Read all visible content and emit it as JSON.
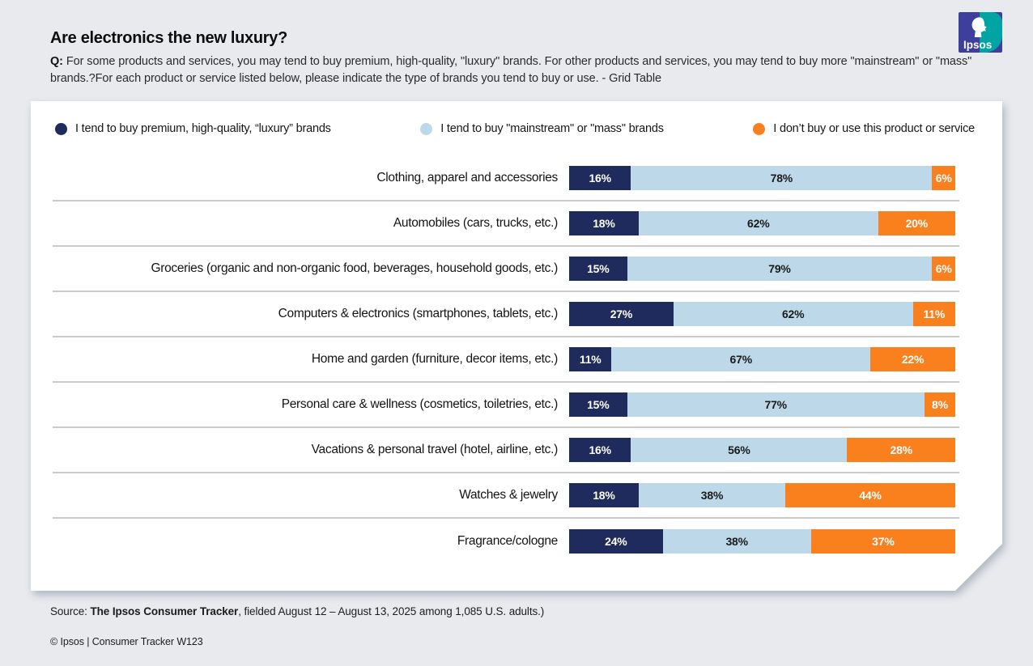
{
  "header": {
    "title": "Are electronics the new luxury?",
    "question_prefix": "Q:",
    "question": "For some products and services, you may tend to buy premium, high-quality, \"luxury\" brands. For other products and services, you may tend to buy more \"mainstream\" or \"mass\" brands.?For each product or service listed below, please indicate the type of brands you tend to buy or use. - Grid Table"
  },
  "logo": {
    "text": "Ipsos",
    "blue": "#3E3E9D",
    "teal": "#00A5A3"
  },
  "legend": [
    {
      "label": "I tend to buy premium, high-quality, “luxury” brands",
      "color": "#1E2B5C"
    },
    {
      "label": "I tend to buy \"mainstream\" or \"mass\" brands",
      "color": "#BDD8E9"
    },
    {
      "label": "I don’t buy or use this product or service",
      "color": "#F9801D"
    }
  ],
  "chart_data": {
    "type": "bar",
    "orientation": "horizontal",
    "stacked": true,
    "value_format": "percent",
    "axis_range": [
      0,
      100
    ],
    "grid": false,
    "legend_position": "top",
    "categories": [
      "Clothing, apparel and accessories",
      "Automobiles (cars, trucks, etc.)",
      "Groceries (organic and non-organic food, beverages, household goods, etc.)",
      "Computers & electronics (smartphones, tablets, etc.)",
      "Home and garden (furniture, decor items, etc.)",
      "Personal care & wellness (cosmetics, toiletries, etc.)",
      "Vacations & personal travel (hotel, airline, etc.)",
      "Watches & jewelry",
      "Fragrance/cologne"
    ],
    "series": [
      {
        "name": "I tend to buy premium, high-quality, “luxury” brands",
        "color": "#1E2B5C",
        "values": [
          16,
          18,
          15,
          27,
          11,
          15,
          16,
          18,
          24
        ]
      },
      {
        "name": "I tend to buy \"mainstream\" or \"mass\" brands",
        "color": "#BDD8E9",
        "values": [
          78,
          62,
          79,
          62,
          67,
          77,
          56,
          38,
          38
        ]
      },
      {
        "name": "I don’t buy or use this product or service",
        "color": "#F9801D",
        "values": [
          6,
          20,
          6,
          11,
          22,
          8,
          28,
          44,
          37
        ]
      }
    ],
    "title": "Are electronics the new luxury?"
  },
  "footer": {
    "source_prefix": "Source: ",
    "source_bold": "The Ipsos Consumer Tracker",
    "source_rest": ", fielded August 12 – August 13, 2025 among 1,085 U.S. adults.)",
    "copyright": "© Ipsos | Consumer Tracker W123"
  }
}
